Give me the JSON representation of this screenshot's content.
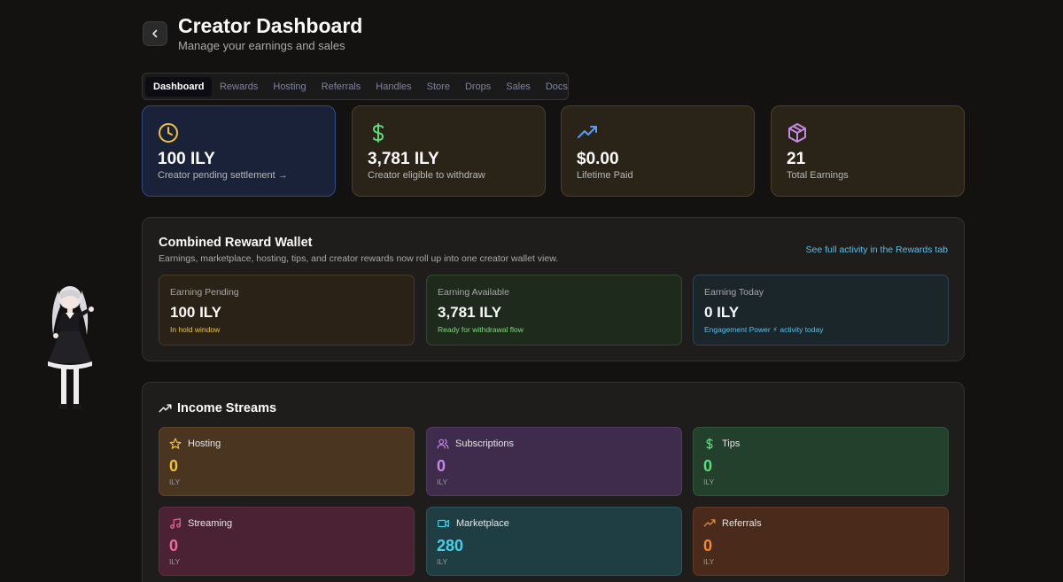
{
  "header": {
    "title": "Creator Dashboard",
    "subtitle": "Manage your earnings and sales",
    "back_icon": "chevron-left-icon"
  },
  "tabs": [
    {
      "label": "Dashboard",
      "active": true
    },
    {
      "label": "Rewards",
      "active": false
    },
    {
      "label": "Hosting",
      "active": false
    },
    {
      "label": "Referrals",
      "active": false
    },
    {
      "label": "Handles",
      "active": false
    },
    {
      "label": "Store",
      "active": false
    },
    {
      "label": "Drops",
      "active": false
    },
    {
      "label": "Sales",
      "active": false
    },
    {
      "label": "Docs",
      "active": false
    }
  ],
  "stats": [
    {
      "value": "100 ILY",
      "label": "Creator pending settlement →",
      "icon": "clock-icon",
      "color": "#f0c23a"
    },
    {
      "value": "3,781 ILY",
      "label": "Creator eligible to withdraw",
      "icon": "dollar-icon",
      "color": "#5fdc7a"
    },
    {
      "value": "$0.00",
      "label": "Lifetime Paid",
      "icon": "trending-up-icon",
      "color": "#5b9cf0"
    },
    {
      "value": "21",
      "label": "Total Earnings",
      "icon": "package-icon",
      "color": "#c58ae6"
    }
  ],
  "wallet": {
    "title": "Combined Reward Wallet",
    "subtitle": "Earnings, marketplace, hosting, tips, and creator rewards now roll up into one creator wallet view.",
    "link": "See full activity in the Rewards tab",
    "cards": [
      {
        "label": "Earning Pending",
        "value": "100 ILY",
        "note": "In hold window"
      },
      {
        "label": "Earning Available",
        "value": "3,781 ILY",
        "note": "Ready for withdrawal flow"
      },
      {
        "label": "Earning Today",
        "value": "0 ILY",
        "note": "Engagement Power ⚡ activity today"
      }
    ]
  },
  "income": {
    "title": "Income Streams",
    "icon": "trending-up-icon",
    "streams": [
      {
        "name": "Hosting",
        "value": "0",
        "unit": "ILY",
        "icon": "star-icon",
        "color": "#f0c23a"
      },
      {
        "name": "Subscriptions",
        "value": "0",
        "unit": "ILY",
        "icon": "users-icon",
        "color": "#c58ae6"
      },
      {
        "name": "Tips",
        "value": "0",
        "unit": "ILY",
        "icon": "dollar-icon",
        "color": "#5fdc7a"
      },
      {
        "name": "Streaming",
        "value": "0",
        "unit": "ILY",
        "icon": "music-icon",
        "color": "#ef6aa0"
      },
      {
        "name": "Marketplace",
        "value": "280",
        "unit": "ILY",
        "icon": "video-icon",
        "color": "#46d0ea"
      },
      {
        "name": "Referrals",
        "value": "0",
        "unit": "ILY",
        "icon": "trending-up-icon",
        "color": "#f08a3a"
      }
    ]
  }
}
